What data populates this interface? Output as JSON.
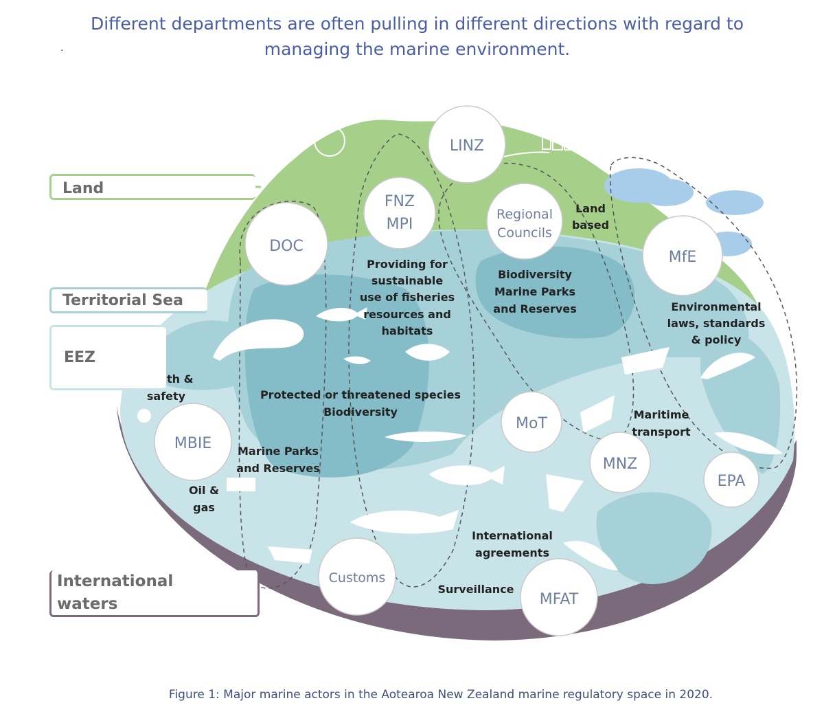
{
  "title_line1": "Different departments are often pulling in different directions with regard to",
  "title_line2": "managing the marine environment.",
  "stray_mark": ".",
  "caption": "Figure 1: Major marine actors in the Aotearoa New Zealand marine regulatory space in 2020.",
  "zones": {
    "land": "Land",
    "territorial_sea": "Territorial Sea",
    "eez": "EEZ",
    "international_line1": "International",
    "international_line2": "waters"
  },
  "actors": {
    "linz": "LINZ",
    "fnz_line1": "FNZ",
    "fnz_line2": "MPI",
    "doc": "DOC",
    "regional_line1": "Regional",
    "regional_line2": "Councils",
    "mfe": "MfE",
    "mbie": "MBIE",
    "mot": "MoT",
    "mnz": "MNZ",
    "epa": "EPA",
    "customs": "Customs",
    "mfat": "MFAT"
  },
  "labels": {
    "land_based_1": "Land",
    "land_based_2": "based",
    "fisheries_1": "Providing for",
    "fisheries_2": "sustainable",
    "fisheries_3": "use of fisheries",
    "fisheries_4": "resources and",
    "fisheries_5": "habitats",
    "biodiv_1": "Biodiversity",
    "biodiv_2": "Marine Parks",
    "biodiv_3": "and Reserves",
    "env_1": "Environmental",
    "env_2": "laws, standards",
    "env_3": "& policy",
    "health_1": "Health &",
    "health_2": "safety",
    "protected_1": "Protected or threatened species",
    "protected_2": "Biodiversity",
    "parks_1": "Marine Parks",
    "parks_2": "and Reserves",
    "oil_1": "Oil &",
    "oil_2": "gas",
    "maritime_1": "Maritime",
    "maritime_2": "transport",
    "intl_1": "International",
    "intl_2": "agreements",
    "surveillance": "Surveillance"
  },
  "colors": {
    "title": "#4a5ea6",
    "land_green": "#a6d08a",
    "sea_light": "#c9e4e8",
    "sea_mid": "#a7d1d8",
    "sea_dark": "#84bcc7",
    "base_purple": "#7a6a7c",
    "zone_border_land": "#a6d08a",
    "zone_border_sea": "#a7d1d8",
    "zone_border_intl": "#7a6a7c",
    "actor_text": "#6e7e9e"
  }
}
